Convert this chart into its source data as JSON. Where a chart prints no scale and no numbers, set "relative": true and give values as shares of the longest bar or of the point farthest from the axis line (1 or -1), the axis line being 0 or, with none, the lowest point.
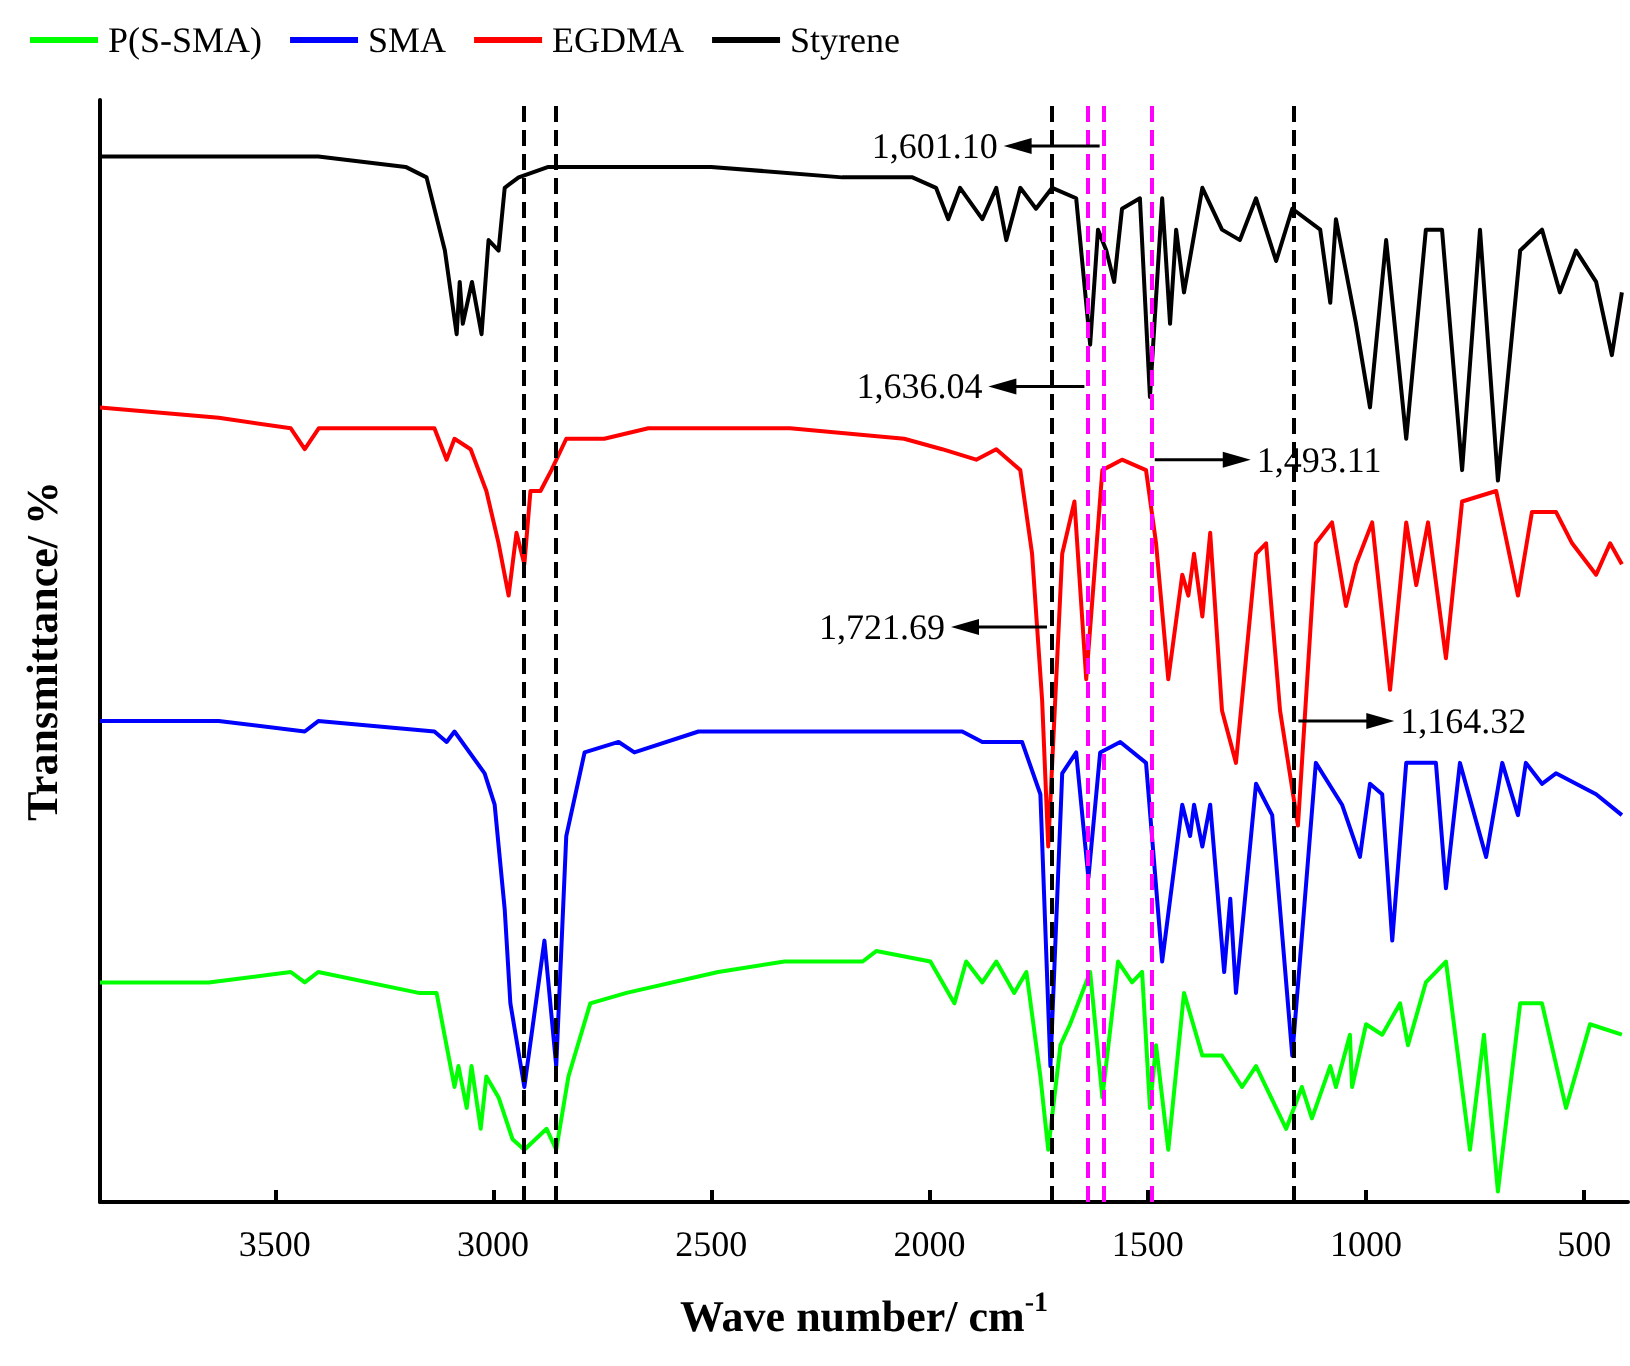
{
  "chart_data": {
    "type": "line",
    "relative": true,
    "xlabel": "Wave number/ cm$^{-1}$",
    "ylabel": "Transmittance/ %",
    "xlim": [
      3900,
      400
    ],
    "xticks": [
      3500,
      3000,
      2500,
      2000,
      1500,
      1000,
      500
    ],
    "tick_labels": "x",
    "grid": false,
    "legend": "top",
    "series": [
      {
        "name": "P(S-SMA)",
        "color": "#00ff00",
        "x": [
          3900,
          3651,
          3463,
          3431,
          3400,
          3170,
          3129,
          3111,
          3088,
          3079,
          3060,
          3049,
          3028,
          3015,
          2987,
          2955,
          2928,
          2877,
          2855,
          2827,
          2777,
          2694,
          2484,
          2332,
          2153,
          2122,
          1998,
          1943,
          1916,
          1879,
          1847,
          1806,
          1778,
          1746,
          1728,
          1700,
          1678,
          1632,
          1604,
          1568,
          1536,
          1513,
          1495,
          1481,
          1453,
          1417,
          1375,
          1330,
          1284,
          1252,
          1183,
          1147,
          1124,
          1082,
          1069,
          1037,
          1032,
          1000,
          963,
          922,
          904,
          863,
          817,
          762,
          730,
          698,
          647,
          597,
          542,
          487,
          414
        ],
        "values": [
          0.21,
          0.21,
          0.22,
          0.21,
          0.22,
          0.2,
          0.2,
          0.16,
          0.11,
          0.13,
          0.09,
          0.13,
          0.07,
          0.12,
          0.1,
          0.06,
          0.05,
          0.07,
          0.05,
          0.12,
          0.19,
          0.2,
          0.22,
          0.23,
          0.23,
          0.24,
          0.23,
          0.19,
          0.23,
          0.21,
          0.23,
          0.2,
          0.22,
          0.12,
          0.05,
          0.15,
          0.17,
          0.22,
          0.1,
          0.23,
          0.21,
          0.22,
          0.09,
          0.15,
          0.05,
          0.2,
          0.14,
          0.14,
          0.11,
          0.13,
          0.07,
          0.11,
          0.08,
          0.13,
          0.11,
          0.16,
          0.11,
          0.17,
          0.16,
          0.19,
          0.15,
          0.21,
          0.23,
          0.05,
          0.16,
          0.01,
          0.19,
          0.19,
          0.09,
          0.17,
          0.16
        ]
      },
      {
        "name": "SMA",
        "color": "#0000ff",
        "x": [
          3900,
          3628,
          3431,
          3400,
          3134,
          3106,
          3088,
          3019,
          2996,
          2973,
          2960,
          2928,
          2882,
          2855,
          2832,
          2790,
          2712,
          2676,
          2529,
          2039,
          1925,
          1879,
          1847,
          1788,
          1746,
          1723,
          1696,
          1664,
          1636,
          1609,
          1563,
          1504,
          1467,
          1421,
          1403,
          1394,
          1375,
          1357,
          1325,
          1311,
          1298,
          1252,
          1215,
          1169,
          1115,
          1055,
          1014,
          991,
          963,
          940,
          908,
          840,
          817,
          785,
          725,
          688,
          652,
          634,
          597,
          565,
          473,
          414
        ],
        "values": [
          0.46,
          0.46,
          0.45,
          0.46,
          0.45,
          0.44,
          0.45,
          0.41,
          0.38,
          0.28,
          0.19,
          0.11,
          0.25,
          0.13,
          0.35,
          0.43,
          0.44,
          0.43,
          0.45,
          0.45,
          0.45,
          0.44,
          0.44,
          0.44,
          0.39,
          0.13,
          0.41,
          0.43,
          0.31,
          0.43,
          0.44,
          0.42,
          0.23,
          0.38,
          0.35,
          0.38,
          0.34,
          0.38,
          0.22,
          0.29,
          0.2,
          0.4,
          0.37,
          0.14,
          0.42,
          0.38,
          0.33,
          0.4,
          0.39,
          0.25,
          0.42,
          0.42,
          0.3,
          0.42,
          0.33,
          0.42,
          0.37,
          0.42,
          0.4,
          0.41,
          0.39,
          0.37
        ]
      },
      {
        "name": "EGDMA",
        "color": "#ff0000",
        "x": [
          3900,
          3628,
          3463,
          3431,
          3399,
          3358,
          3317,
          3134,
          3106,
          3088,
          3051,
          3015,
          2987,
          2964,
          2946,
          2928,
          2914,
          2891,
          2866,
          2832,
          2745,
          2644,
          2319,
          2058,
          1971,
          1893,
          1847,
          1792,
          1765,
          1742,
          1728,
          1696,
          1668,
          1641,
          1604,
          1559,
          1504,
          1481,
          1453,
          1421,
          1407,
          1394,
          1375,
          1357,
          1330,
          1298,
          1252,
          1229,
          1197,
          1156,
          1115,
          1078,
          1046,
          1023,
          986,
          945,
          908,
          885,
          858,
          817,
          780,
          702,
          652,
          620,
          565,
          528,
          473,
          441,
          414
        ],
        "values": [
          0.76,
          0.75,
          0.74,
          0.72,
          0.74,
          0.74,
          0.74,
          0.74,
          0.71,
          0.73,
          0.72,
          0.68,
          0.63,
          0.58,
          0.64,
          0.61,
          0.68,
          0.68,
          0.7,
          0.73,
          0.73,
          0.74,
          0.74,
          0.73,
          0.72,
          0.71,
          0.72,
          0.7,
          0.62,
          0.48,
          0.34,
          0.62,
          0.67,
          0.5,
          0.7,
          0.71,
          0.7,
          0.63,
          0.5,
          0.6,
          0.58,
          0.62,
          0.56,
          0.64,
          0.47,
          0.42,
          0.62,
          0.63,
          0.47,
          0.36,
          0.63,
          0.65,
          0.57,
          0.61,
          0.65,
          0.49,
          0.65,
          0.59,
          0.65,
          0.52,
          0.67,
          0.68,
          0.58,
          0.66,
          0.66,
          0.63,
          0.6,
          0.63,
          0.61
        ]
      },
      {
        "name": "Styrene",
        "color": "#000000",
        "x": [
          3900,
          3600,
          3400,
          3200,
          3152,
          3110,
          3083,
          3076,
          3069,
          3048,
          3026,
          3010,
          2987,
          2973,
          2941,
          2873,
          2500,
          2200,
          2039,
          1985,
          1957,
          1930,
          1879,
          1847,
          1824,
          1792,
          1756,
          1719,
          1664,
          1632,
          1614,
          1595,
          1577,
          1559,
          1518,
          1495,
          1467,
          1449,
          1435,
          1417,
          1375,
          1330,
          1289,
          1252,
          1206,
          1169,
          1105,
          1082,
          1069,
          1023,
          991,
          954,
          908,
          863,
          826,
          780,
          739,
          698,
          647,
          597,
          556,
          519,
          473,
          437,
          414
        ],
        "values": [
          1.0,
          1.0,
          1.0,
          0.99,
          0.98,
          0.91,
          0.83,
          0.88,
          0.84,
          0.88,
          0.83,
          0.92,
          0.91,
          0.97,
          0.98,
          0.99,
          0.99,
          0.98,
          0.98,
          0.97,
          0.94,
          0.97,
          0.94,
          0.97,
          0.92,
          0.97,
          0.95,
          0.97,
          0.96,
          0.82,
          0.93,
          0.91,
          0.88,
          0.95,
          0.96,
          0.77,
          0.96,
          0.84,
          0.93,
          0.87,
          0.97,
          0.93,
          0.92,
          0.96,
          0.9,
          0.95,
          0.93,
          0.86,
          0.94,
          0.84,
          0.76,
          0.92,
          0.73,
          0.93,
          0.93,
          0.7,
          0.93,
          0.69,
          0.91,
          0.93,
          0.87,
          0.91,
          0.88,
          0.81,
          0.87
        ]
      }
    ],
    "ref_lines": [
      {
        "axis": "x",
        "value": 2928,
        "color": "#000000",
        "line_style": "dashed"
      },
      {
        "axis": "x",
        "value": 2855,
        "color": "#000000",
        "line_style": "dashed"
      },
      {
        "axis": "x",
        "value": 1721.69,
        "color": "#000000",
        "line_style": "dashed"
      },
      {
        "axis": "x",
        "value": 1164.32,
        "color": "#000000",
        "line_style": "dashed"
      },
      {
        "axis": "x",
        "value": 1636.04,
        "color": "#ff00ff",
        "line_style": "dashed"
      },
      {
        "axis": "x",
        "value": 1601.1,
        "color": "#ff00ff",
        "line_style": "dashed"
      },
      {
        "axis": "x",
        "value": 1493.11,
        "color": "#ff00ff",
        "line_style": "dashed"
      }
    ],
    "annotations": [
      {
        "text": "1,601.10",
        "x": 1601.1,
        "y": 1.01
      },
      {
        "text": "1,636.04",
        "x": 1636.04,
        "y": 0.78
      },
      {
        "text": "1,493.11",
        "x": 1493.11,
        "y": 0.71
      },
      {
        "text": "1,721.69",
        "x": 1721.69,
        "y": 0.55
      },
      {
        "text": "1,164.32",
        "x": 1164.32,
        "y": 0.46
      }
    ]
  }
}
